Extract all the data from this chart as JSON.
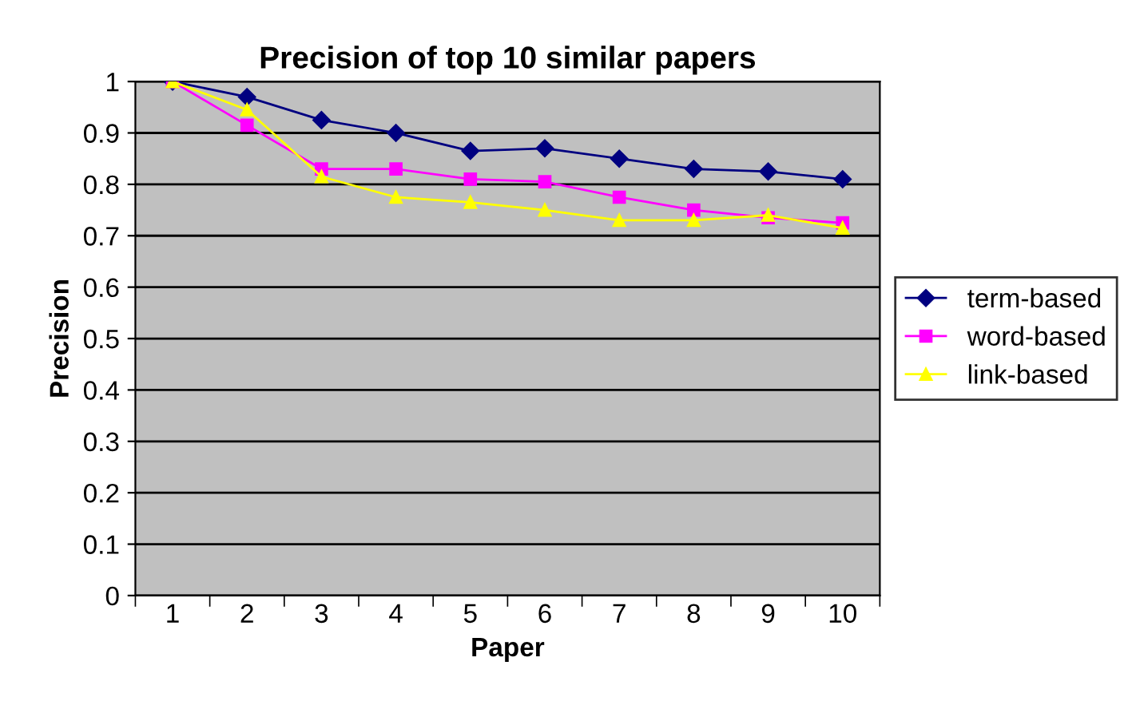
{
  "chart_data": {
    "type": "line",
    "title": "Precision of top 10 similar papers",
    "xlabel": "Paper",
    "ylabel": "Precision",
    "categories": [
      "1",
      "2",
      "3",
      "4",
      "5",
      "6",
      "7",
      "8",
      "9",
      "10"
    ],
    "series": [
      {
        "name": "term-based",
        "color": "#000080",
        "marker": "diamond",
        "values": [
          1,
          0.97,
          0.925,
          0.9,
          0.865,
          0.87,
          0.85,
          0.83,
          0.825,
          0.81
        ]
      },
      {
        "name": "word-based",
        "color": "#ff00ff",
        "marker": "square",
        "values": [
          1,
          0.915,
          0.83,
          0.83,
          0.81,
          0.805,
          0.775,
          0.75,
          0.735,
          0.725
        ]
      },
      {
        "name": "link-based",
        "color": "#ffff00",
        "marker": "triangle",
        "values": [
          1,
          0.945,
          0.815,
          0.775,
          0.765,
          0.75,
          0.73,
          0.73,
          0.74,
          0.715
        ]
      }
    ],
    "ylim": [
      0,
      1
    ],
    "yticks": [
      0,
      0.1,
      0.2,
      0.3,
      0.4,
      0.5,
      0.6,
      0.7,
      0.8,
      0.9,
      1
    ],
    "grid": "y",
    "legend": "right"
  }
}
